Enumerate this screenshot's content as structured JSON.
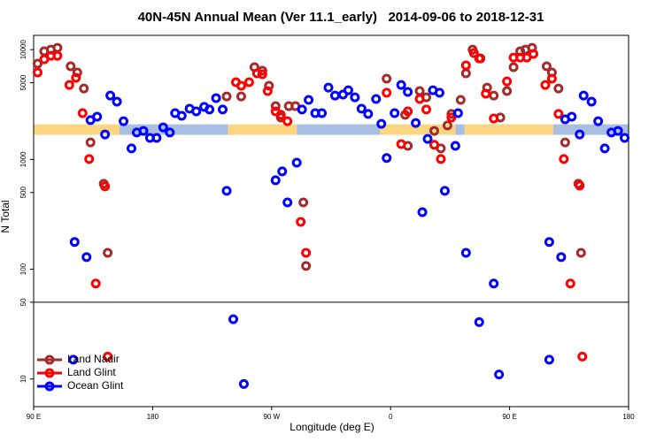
{
  "chart_data": {
    "type": "scatter",
    "title": "40N-45N Annual Mean (Ver 11.1_early)   2014-09-06 to 2018-12-31",
    "x_label": "Longitude (deg E)",
    "y_label": "N Total",
    "xlim": [
      90,
      540
    ],
    "xticks": [
      {
        "value": 90,
        "label": "90 E"
      },
      {
        "value": 180,
        "label": "180"
      },
      {
        "value": 270,
        "label": "90 W"
      },
      {
        "value": 360,
        "label": "0"
      },
      {
        "value": 450,
        "label": "90 E"
      },
      {
        "value": 540,
        "label": "180"
      }
    ],
    "ylim": [
      5.6,
      13500
    ],
    "yticks": [
      10,
      50,
      100,
      500,
      1000,
      5000,
      10000
    ],
    "y_scale": "log",
    "hline": 50,
    "legend": "lower left",
    "band": {
      "y": [
        1675,
        2090
      ],
      "segments": [
        {
          "x": [
            90,
            155
          ],
          "color": "#fcd581"
        },
        {
          "x": [
            155,
            237
          ],
          "color": "#a9bfe2"
        },
        {
          "x": [
            237,
            289
          ],
          "color": "#fcd581"
        },
        {
          "x": [
            289,
            352
          ],
          "color": "#a9bfe2"
        },
        {
          "x": [
            352,
            409
          ],
          "color": "#fcd581"
        },
        {
          "x": [
            409,
            416
          ],
          "color": "#a9bfe2"
        },
        {
          "x": [
            416,
            483
          ],
          "color": "#fcd581"
        },
        {
          "x": [
            483,
            540
          ],
          "color": "#a9bfe2"
        }
      ]
    },
    "series": [
      {
        "name": "Land Nadir",
        "color": "#a52a2a",
        "x": [
          93,
          98,
          103,
          108,
          118,
          123,
          128,
          133,
          143,
          146,
          236,
          247,
          257,
          263,
          268,
          273,
          277,
          283,
          288,
          294,
          296,
          357,
          371,
          373,
          382,
          387,
          393,
          398,
          403,
          406,
          413,
          417,
          422,
          428,
          433,
          438,
          443,
          448,
          453,
          458,
          462,
          467,
          478,
          482,
          487,
          492,
          502,
          504
        ],
        "values": [
          7450,
          9660,
          10000,
          10400,
          7050,
          6200,
          4430,
          1430,
          600,
          141,
          3750,
          3750,
          6920,
          6430,
          4690,
          3060,
          2410,
          3060,
          3060,
          406,
          107,
          5440,
          2550,
          1330,
          4200,
          3680,
          1820,
          1260,
          2040,
          2600,
          3490,
          6080,
          10000,
          8310,
          4510,
          3820,
          2410,
          4200,
          6920,
          9660,
          10000,
          10400,
          7050,
          6200,
          4430,
          1430,
          600,
          141
        ]
      },
      {
        "name": "Land Glint",
        "color": "#ff0000",
        "x": [
          93,
          98,
          103,
          108,
          117,
          122,
          127,
          132,
          137,
          144,
          146,
          243,
          247,
          253,
          259,
          263,
          267,
          273,
          277,
          282,
          292,
          296,
          357,
          368,
          373,
          382,
          387,
          393,
          398,
          406,
          417,
          423,
          427,
          432,
          438,
          448,
          453,
          458,
          463,
          468,
          477,
          482,
          487,
          491,
          496,
          503,
          505
        ],
        "values": [
          6200,
          8170,
          8790,
          8790,
          4770,
          5540,
          2640,
          1010,
          74,
          568,
          16,
          5050,
          4690,
          5050,
          6080,
          5970,
          4200,
          2740,
          2550,
          2230,
          270,
          141,
          4050,
          1380,
          2740,
          3550,
          2850,
          1360,
          1010,
          2410,
          7180,
          9310,
          8310,
          3970,
          2360,
          5140,
          8470,
          8470,
          8470,
          9140,
          4770,
          5440,
          2600,
          1010,
          74,
          578,
          16
        ]
      },
      {
        "name": "Ocean Glint",
        "color": "#0000ff",
        "x": [
          120,
          121,
          130,
          133,
          138,
          144,
          148,
          153,
          158,
          164,
          168,
          173,
          178,
          183,
          188,
          193,
          197,
          202,
          208,
          213,
          219,
          223,
          228,
          233,
          236,
          241,
          249,
          273,
          278,
          282,
          289,
          293,
          298,
          303,
          308,
          313,
          318,
          324,
          328,
          333,
          338,
          343,
          349,
          353,
          357,
          363,
          368,
          373,
          379,
          384,
          388,
          392,
          397,
          401,
          409,
          411,
          417,
          427,
          438,
          442,
          480,
          480,
          489,
          492,
          497,
          503,
          506,
          512,
          517,
          522,
          527,
          532,
          537
        ],
        "values": [
          15,
          177,
          129,
          2280,
          2450,
          1690,
          3820,
          3360,
          2230,
          1260,
          1760,
          1820,
          1570,
          1570,
          1960,
          1760,
          2640,
          2500,
          2900,
          2740,
          3010,
          2850,
          3620,
          2850,
          518,
          35,
          9,
          646,
          778,
          406,
          935,
          2850,
          3490,
          2640,
          2640,
          4510,
          3820,
          3900,
          4270,
          3680,
          2900,
          2600,
          3550,
          2110,
          1030,
          2640,
          4770,
          4120,
          2150,
          331,
          1540,
          4270,
          4050,
          518,
          1330,
          2640,
          141,
          33,
          74,
          11,
          177,
          15,
          129,
          2320,
          2450,
          1690,
          3820,
          3360,
          2230,
          1260,
          1760,
          1820,
          1570
        ]
      }
    ]
  }
}
